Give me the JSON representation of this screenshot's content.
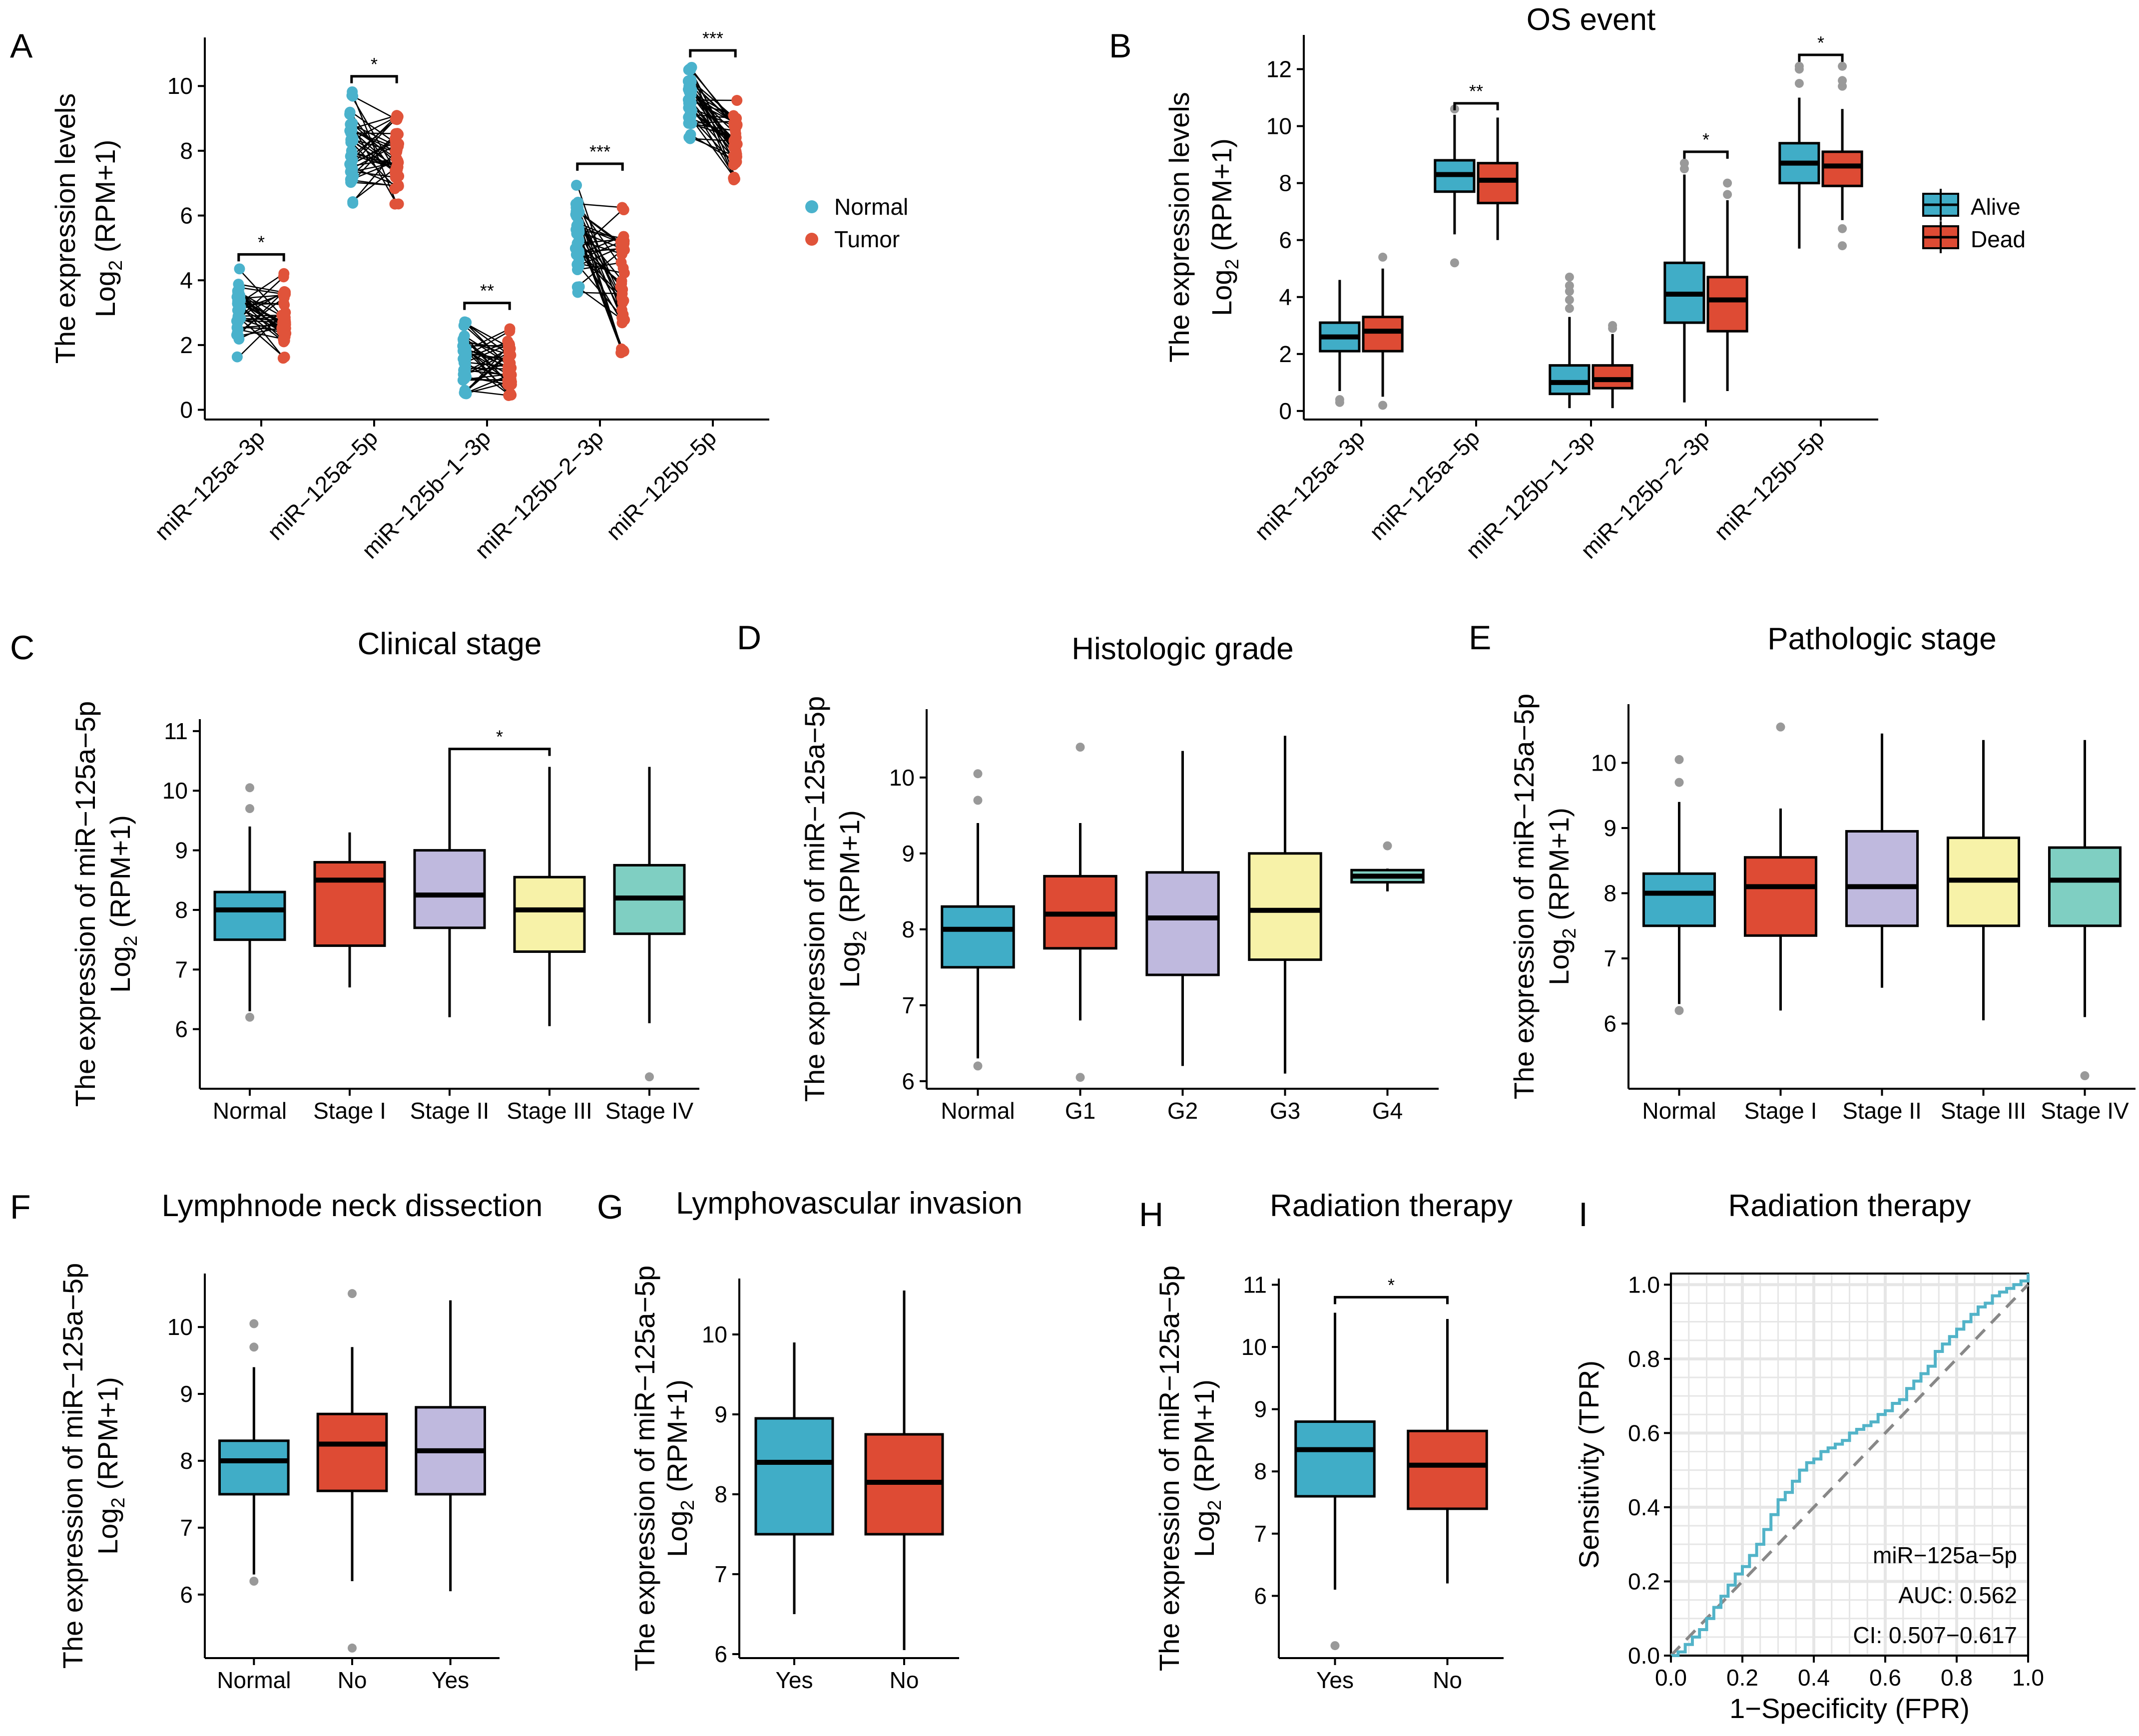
{
  "colors": {
    "normal": "#4AB2CC",
    "tumor": "#E0533A",
    "alive": "#40ADC7",
    "dead": "#DE4B34",
    "c1": "#40ADC7",
    "c2": "#DE4B34",
    "c3": "#BFB9DE",
    "c4": "#F7F2A8",
    "c5": "#7FCFC2",
    "roc": "#52B3C8",
    "diag": "#888888",
    "outlier": "#999999"
  },
  "legends": {
    "A": [
      "Normal",
      "Tumor"
    ],
    "B": [
      "Alive",
      "Dead"
    ]
  },
  "chart_data": [
    {
      "panel": "A",
      "type": "paired-scatter",
      "title": "",
      "ylabel": "The expression levels",
      "ylabel2_pre": "Log",
      "ylabel2_sub": "2",
      "ylabel2_post": " (RPM+1)",
      "yticks": [
        0,
        2,
        4,
        6,
        8,
        10
      ],
      "ylim": [
        -0.3,
        11.5
      ],
      "categories": [
        "miR−125a−3p",
        "miR−125a−5p",
        "miR−125b−1−3p",
        "miR−125b−2−3p",
        "miR−125b−5p"
      ],
      "series": [
        {
          "name": "Normal",
          "ranges": [
            [
              1.5,
              4.5
            ],
            [
              6.2,
              10.0
            ],
            [
              0.4,
              2.8
            ],
            [
              3.5,
              7.2
            ],
            [
              8.3,
              10.7
            ]
          ]
        },
        {
          "name": "Tumor",
          "ranges": [
            [
              1.5,
              4.3
            ],
            [
              6.2,
              9.2
            ],
            [
              0.3,
              2.6
            ],
            [
              1.6,
              6.4
            ],
            [
              7.0,
              9.7
            ]
          ]
        }
      ],
      "significance": [
        {
          "category": 0,
          "y": 4.8,
          "label": "*"
        },
        {
          "category": 1,
          "y": 10.3,
          "label": "*"
        },
        {
          "category": 2,
          "y": 3.3,
          "label": "**"
        },
        {
          "category": 3,
          "y": 7.6,
          "label": "***"
        },
        {
          "category": 4,
          "y": 11.1,
          "label": "***"
        }
      ]
    },
    {
      "panel": "B",
      "type": "grouped-box",
      "title": "OS event",
      "ylabel": "The expression levels",
      "ylabel2_pre": "Log",
      "ylabel2_sub": "2",
      "ylabel2_post": " (RPM+1)",
      "yticks": [
        0,
        2,
        4,
        6,
        8,
        10,
        12
      ],
      "ylim": [
        -0.3,
        13.2
      ],
      "categories": [
        "miR−125a−3p",
        "miR−125a−5p",
        "miR−125b−1−3p",
        "miR−125b−2−3p",
        "miR−125b−5p"
      ],
      "series": [
        {
          "name": "Alive",
          "boxes": [
            {
              "min": 0.7,
              "q1": 2.1,
              "median": 2.6,
              "q3": 3.1,
              "max": 4.6,
              "outliers": [
                0.4,
                0.3
              ]
            },
            {
              "min": 6.2,
              "q1": 7.7,
              "median": 8.3,
              "q3": 8.8,
              "max": 10.4,
              "outliers": [
                5.2,
                10.6
              ]
            },
            {
              "min": 0.1,
              "q1": 0.6,
              "median": 1.0,
              "q3": 1.6,
              "max": 3.3,
              "outliers": [
                3.6,
                3.9,
                4.2,
                4.4,
                4.7
              ]
            },
            {
              "min": 0.3,
              "q1": 3.1,
              "median": 4.1,
              "q3": 5.2,
              "max": 8.3,
              "outliers": [
                8.5,
                8.7
              ]
            },
            {
              "min": 5.7,
              "q1": 8.0,
              "median": 8.7,
              "q3": 9.4,
              "max": 11.0,
              "outliers": [
                11.5,
                12.0,
                12.1
              ]
            }
          ]
        },
        {
          "name": "Dead",
          "boxes": [
            {
              "min": 0.5,
              "q1": 2.1,
              "median": 2.8,
              "q3": 3.3,
              "max": 5.0,
              "outliers": [
                0.2,
                5.4
              ]
            },
            {
              "min": 6.0,
              "q1": 7.3,
              "median": 8.1,
              "q3": 8.7,
              "max": 10.3,
              "outliers": []
            },
            {
              "min": 0.1,
              "q1": 0.8,
              "median": 1.1,
              "q3": 1.6,
              "max": 2.7,
              "outliers": [
                2.9,
                3.0
              ]
            },
            {
              "min": 0.7,
              "q1": 2.8,
              "median": 3.9,
              "q3": 4.7,
              "max": 7.4,
              "outliers": [
                7.6,
                8.0
              ]
            },
            {
              "min": 6.7,
              "q1": 7.9,
              "median": 8.6,
              "q3": 9.1,
              "max": 10.6,
              "outliers": [
                5.8,
                6.4,
                11.4,
                11.6,
                12.1
              ]
            }
          ]
        }
      ],
      "significance": [
        {
          "category": 1,
          "y": 10.8,
          "label": "**"
        },
        {
          "category": 3,
          "y": 9.1,
          "label": "*"
        },
        {
          "category": 4,
          "y": 12.5,
          "label": "*"
        }
      ]
    },
    {
      "panel": "C",
      "type": "box",
      "title": "Clinical stage",
      "ylabel": "The expression of miR−125a−5p",
      "ylabel2_pre": "Log",
      "ylabel2_sub": "2",
      "ylabel2_post": " (RPM+1)",
      "yticks": [
        6,
        7,
        8,
        9,
        10,
        11
      ],
      "ylim": [
        5.0,
        11.2
      ],
      "categories": [
        "Normal",
        "Stage I",
        "Stage II",
        "Stage III",
        "Stage IV"
      ],
      "boxes": [
        {
          "min": 6.3,
          "q1": 7.5,
          "median": 8.0,
          "q3": 8.3,
          "max": 9.4,
          "outliers": [
            6.2,
            9.7,
            10.05
          ]
        },
        {
          "min": 6.7,
          "q1": 7.4,
          "median": 8.5,
          "q3": 8.8,
          "max": 9.3,
          "outliers": []
        },
        {
          "min": 6.2,
          "q1": 7.7,
          "median": 8.25,
          "q3": 9.0,
          "max": 10.6,
          "outliers": []
        },
        {
          "min": 6.05,
          "q1": 7.3,
          "median": 8.0,
          "q3": 8.55,
          "max": 10.4,
          "outliers": []
        },
        {
          "min": 6.1,
          "q1": 7.6,
          "median": 8.2,
          "q3": 8.75,
          "max": 10.4,
          "outliers": [
            5.2
          ]
        }
      ],
      "significance": [
        {
          "from": 2,
          "to": 3,
          "y": 10.7,
          "label": "*"
        }
      ]
    },
    {
      "panel": "D",
      "type": "box",
      "title": "Histologic grade",
      "ylabel": "The expression of miR−125a−5p",
      "ylabel2_pre": "Log",
      "ylabel2_sub": "2",
      "ylabel2_post": " (RPM+1)",
      "yticks": [
        6,
        7,
        8,
        9,
        10
      ],
      "ylim": [
        5.9,
        10.9
      ],
      "categories": [
        "Normal",
        "G1",
        "G2",
        "G3",
        "G4"
      ],
      "boxes": [
        {
          "min": 6.3,
          "q1": 7.5,
          "median": 8.0,
          "q3": 8.3,
          "max": 9.4,
          "outliers": [
            6.2,
            9.7,
            10.05
          ]
        },
        {
          "min": 6.8,
          "q1": 7.75,
          "median": 8.2,
          "q3": 8.7,
          "max": 9.4,
          "outliers": [
            6.05,
            10.4
          ]
        },
        {
          "min": 6.2,
          "q1": 7.4,
          "median": 8.15,
          "q3": 8.75,
          "max": 10.35,
          "outliers": []
        },
        {
          "min": 6.1,
          "q1": 7.6,
          "median": 8.25,
          "q3": 9.0,
          "max": 10.55,
          "outliers": []
        },
        {
          "min": 8.5,
          "q1": 8.62,
          "median": 8.7,
          "q3": 8.78,
          "max": 8.8,
          "outliers": [
            9.1
          ]
        }
      ],
      "significance": []
    },
    {
      "panel": "E",
      "type": "box",
      "title": "Pathologic stage",
      "ylabel": "The expression of miR−125a−5p",
      "ylabel2_pre": "Log",
      "ylabel2_sub": "2",
      "ylabel2_post": " (RPM+1)",
      "yticks": [
        6,
        7,
        8,
        9,
        10
      ],
      "ylim": [
        5.0,
        10.9
      ],
      "categories": [
        "Normal",
        "Stage I",
        "Stage II",
        "Stage III",
        "Stage IV"
      ],
      "boxes": [
        {
          "min": 6.3,
          "q1": 7.5,
          "median": 8.0,
          "q3": 8.3,
          "max": 9.4,
          "outliers": [
            6.2,
            9.7,
            10.05
          ]
        },
        {
          "min": 6.2,
          "q1": 7.35,
          "median": 8.1,
          "q3": 8.55,
          "max": 9.3,
          "outliers": [
            10.55
          ]
        },
        {
          "min": 6.55,
          "q1": 7.5,
          "median": 8.1,
          "q3": 8.95,
          "max": 10.45,
          "outliers": []
        },
        {
          "min": 6.05,
          "q1": 7.5,
          "median": 8.2,
          "q3": 8.85,
          "max": 10.35,
          "outliers": []
        },
        {
          "min": 6.1,
          "q1": 7.5,
          "median": 8.2,
          "q3": 8.7,
          "max": 10.35,
          "outliers": [
            5.2
          ]
        }
      ],
      "significance": []
    },
    {
      "panel": "F",
      "type": "box",
      "title": "Lymphnode neck dissection",
      "ylabel": "The expression of miR−125a−5p",
      "ylabel2_pre": "Log",
      "ylabel2_sub": "2",
      "ylabel2_post": " (RPM+1)",
      "yticks": [
        6,
        7,
        8,
        9,
        10
      ],
      "ylim": [
        5.05,
        10.8
      ],
      "categories": [
        "Normal",
        "No",
        "Yes"
      ],
      "boxes": [
        {
          "min": 6.3,
          "q1": 7.5,
          "median": 8.0,
          "q3": 8.3,
          "max": 9.4,
          "outliers": [
            6.2,
            9.7,
            10.05
          ]
        },
        {
          "min": 6.2,
          "q1": 7.55,
          "median": 8.25,
          "q3": 8.7,
          "max": 9.7,
          "outliers": [
            5.2,
            10.5
          ]
        },
        {
          "min": 6.05,
          "q1": 7.5,
          "median": 8.15,
          "q3": 8.8,
          "max": 10.4,
          "outliers": []
        }
      ],
      "significance": []
    },
    {
      "panel": "G",
      "type": "box",
      "title": "Lymphovascular invasion",
      "ylabel": "The expression of miR−125a−5p",
      "ylabel2_pre": "Log",
      "ylabel2_sub": "2",
      "ylabel2_post": " (RPM+1)",
      "yticks": [
        6,
        7,
        8,
        9,
        10
      ],
      "ylim": [
        5.95,
        10.7
      ],
      "categories": [
        "Yes",
        "No"
      ],
      "boxes": [
        {
          "min": 6.5,
          "q1": 7.5,
          "median": 8.4,
          "q3": 8.95,
          "max": 9.9,
          "outliers": []
        },
        {
          "min": 6.05,
          "q1": 7.5,
          "median": 8.15,
          "q3": 8.75,
          "max": 10.55,
          "outliers": []
        }
      ],
      "significance": []
    },
    {
      "panel": "H",
      "type": "box",
      "title": "Radiation therapy",
      "ylabel": "The expression of miR−125a−5p",
      "ylabel2_pre": "Log",
      "ylabel2_sub": "2",
      "ylabel2_post": " (RPM+1)",
      "yticks": [
        6,
        7,
        8,
        9,
        10,
        11
      ],
      "ylim": [
        5.0,
        11.1
      ],
      "categories": [
        "Yes",
        "No"
      ],
      "boxes": [
        {
          "min": 6.1,
          "q1": 7.6,
          "median": 8.35,
          "q3": 8.8,
          "max": 10.55,
          "outliers": [
            5.2
          ]
        },
        {
          "min": 6.2,
          "q1": 7.4,
          "median": 8.1,
          "q3": 8.65,
          "max": 10.45,
          "outliers": []
        }
      ],
      "significance": [
        {
          "from": 0,
          "to": 1,
          "y": 10.8,
          "label": "*"
        }
      ]
    },
    {
      "panel": "I",
      "type": "line",
      "title": "Radiation therapy",
      "xlabel": "1−Specificity (FPR)",
      "ylabel": "Sensitivity (TPR)",
      "xticks": [
        0.0,
        0.2,
        0.4,
        0.6,
        0.8,
        1.0
      ],
      "yticks": [
        0.0,
        0.2,
        0.4,
        0.6,
        0.8,
        1.0
      ],
      "xlim": [
        0,
        1
      ],
      "ylim": [
        0,
        1.03
      ],
      "roc": {
        "x": [
          0,
          0.02,
          0.04,
          0.06,
          0.08,
          0.1,
          0.12,
          0.14,
          0.16,
          0.18,
          0.2,
          0.22,
          0.24,
          0.26,
          0.28,
          0.3,
          0.32,
          0.34,
          0.36,
          0.38,
          0.4,
          0.42,
          0.44,
          0.46,
          0.48,
          0.5,
          0.52,
          0.54,
          0.56,
          0.58,
          0.6,
          0.62,
          0.64,
          0.66,
          0.68,
          0.7,
          0.72,
          0.74,
          0.76,
          0.78,
          0.8,
          0.82,
          0.84,
          0.86,
          0.88,
          0.9,
          0.92,
          0.94,
          0.96,
          0.98,
          1.0
        ],
        "y": [
          0,
          0.01,
          0.03,
          0.05,
          0.07,
          0.1,
          0.13,
          0.16,
          0.19,
          0.22,
          0.24,
          0.27,
          0.3,
          0.34,
          0.38,
          0.42,
          0.44,
          0.47,
          0.5,
          0.52,
          0.53,
          0.55,
          0.56,
          0.57,
          0.58,
          0.6,
          0.61,
          0.62,
          0.63,
          0.65,
          0.66,
          0.68,
          0.69,
          0.72,
          0.74,
          0.76,
          0.78,
          0.82,
          0.84,
          0.86,
          0.88,
          0.9,
          0.92,
          0.94,
          0.95,
          0.97,
          0.98,
          0.99,
          1.0,
          1.01,
          1.03
        ]
      },
      "annotations": [
        "miR−125a−5p",
        "AUC: 0.562",
        "CI: 0.507−0.617"
      ]
    }
  ]
}
